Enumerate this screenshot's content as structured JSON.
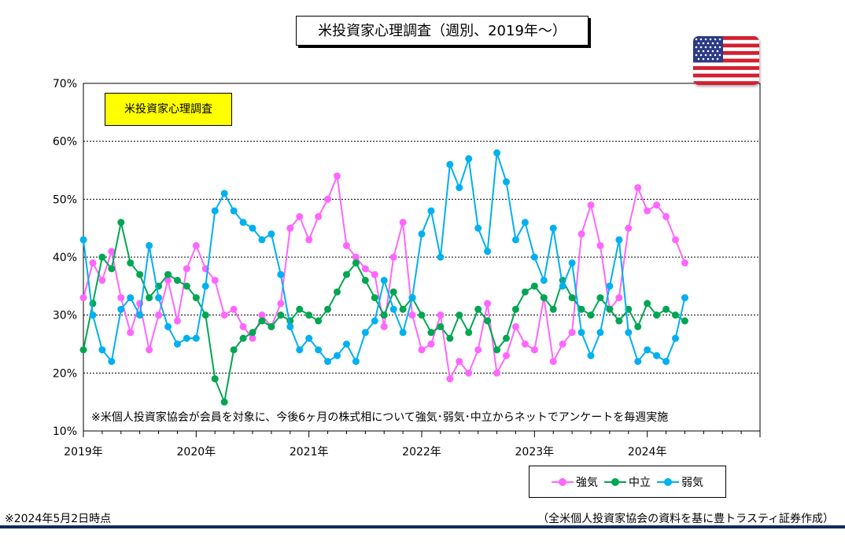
{
  "title": "米投資家心理調査（週別、2019年～）",
  "inner_label": "米投資家心理調査",
  "footnote": "※米個人投資家協会が会員を対象に、今後6ヶ月の株式相について強気･弱気･中立からネットでアンケートを毎週実施",
  "date_note": "※2024年5月2日時点",
  "source_note": "（全米個人投資家協会の資料を基に豊トラスティ証券作成）",
  "flag_icon": "us-flag-icon",
  "colors": {
    "bull": "#ff66ff",
    "neutral": "#00a651",
    "bear": "#00b0f0",
    "grid": "#000000",
    "rule": "#0e2c5c"
  },
  "chart_data": {
    "type": "line",
    "title": "米投資家心理調査（週別、2019年～）",
    "x_start": "2019-01",
    "x_end": "2025-01",
    "x_tick_labels": [
      "2019年",
      "2020年",
      "2021年",
      "2022年",
      "2023年",
      "2024年"
    ],
    "y_tick_labels": [
      "10%",
      "20%",
      "30%",
      "40%",
      "50%",
      "60%",
      "70%"
    ],
    "ylim": [
      10,
      70
    ],
    "y_ticks": [
      10,
      20,
      30,
      40,
      50,
      60,
      70
    ],
    "grid": "horizontal dotted",
    "legend_position": "bottom-right",
    "series": [
      {
        "name": "強気",
        "color": "#ff66ff",
        "points": [
          [
            "2019-01",
            33
          ],
          [
            "2019-02",
            39
          ],
          [
            "2019-03",
            36
          ],
          [
            "2019-04",
            41
          ],
          [
            "2019-05",
            33
          ],
          [
            "2019-06",
            27
          ],
          [
            "2019-07",
            32
          ],
          [
            "2019-08",
            24
          ],
          [
            "2019-09",
            30
          ],
          [
            "2019-10",
            36
          ],
          [
            "2019-11",
            29
          ],
          [
            "2019-12",
            38
          ],
          [
            "2020-01",
            42
          ],
          [
            "2020-02",
            38
          ],
          [
            "2020-03",
            36
          ],
          [
            "2020-04",
            30
          ],
          [
            "2020-05",
            31
          ],
          [
            "2020-06",
            28
          ],
          [
            "2020-07",
            26
          ],
          [
            "2020-08",
            30
          ],
          [
            "2020-09",
            28
          ],
          [
            "2020-10",
            32
          ],
          [
            "2020-11",
            45
          ],
          [
            "2020-12",
            47
          ],
          [
            "2021-01",
            43
          ],
          [
            "2021-02",
            47
          ],
          [
            "2021-03",
            50
          ],
          [
            "2021-04",
            54
          ],
          [
            "2021-05",
            42
          ],
          [
            "2021-06",
            40
          ],
          [
            "2021-07",
            38
          ],
          [
            "2021-08",
            37
          ],
          [
            "2021-09",
            28
          ],
          [
            "2021-10",
            40
          ],
          [
            "2021-11",
            46
          ],
          [
            "2021-12",
            30
          ],
          [
            "2022-01",
            24
          ],
          [
            "2022-02",
            25
          ],
          [
            "2022-03",
            30
          ],
          [
            "2022-04",
            19
          ],
          [
            "2022-05",
            22
          ],
          [
            "2022-06",
            20
          ],
          [
            "2022-07",
            24
          ],
          [
            "2022-08",
            32
          ],
          [
            "2022-09",
            20
          ],
          [
            "2022-10",
            23
          ],
          [
            "2022-11",
            28
          ],
          [
            "2022-12",
            25
          ],
          [
            "2023-01",
            24
          ],
          [
            "2023-02",
            33
          ],
          [
            "2023-03",
            22
          ],
          [
            "2023-04",
            25
          ],
          [
            "2023-05",
            27
          ],
          [
            "2023-06",
            44
          ],
          [
            "2023-07",
            49
          ],
          [
            "2023-08",
            42
          ],
          [
            "2023-09",
            31
          ],
          [
            "2023-10",
            33
          ],
          [
            "2023-11",
            45
          ],
          [
            "2023-12",
            52
          ],
          [
            "2024-01",
            48
          ],
          [
            "2024-02",
            49
          ],
          [
            "2024-03",
            47
          ],
          [
            "2024-04",
            43
          ],
          [
            "2024-05",
            39
          ]
        ]
      },
      {
        "name": "中立",
        "color": "#00a651",
        "points": [
          [
            "2019-01",
            24
          ],
          [
            "2019-02",
            32
          ],
          [
            "2019-03",
            40
          ],
          [
            "2019-04",
            38
          ],
          [
            "2019-05",
            46
          ],
          [
            "2019-06",
            39
          ],
          [
            "2019-07",
            37
          ],
          [
            "2019-08",
            33
          ],
          [
            "2019-09",
            35
          ],
          [
            "2019-10",
            37
          ],
          [
            "2019-11",
            36
          ],
          [
            "2019-12",
            35
          ],
          [
            "2020-01",
            33
          ],
          [
            "2020-02",
            30
          ],
          [
            "2020-03",
            19
          ],
          [
            "2020-04",
            15
          ],
          [
            "2020-05",
            24
          ],
          [
            "2020-06",
            26
          ],
          [
            "2020-07",
            27
          ],
          [
            "2020-08",
            29
          ],
          [
            "2020-09",
            28
          ],
          [
            "2020-10",
            30
          ],
          [
            "2020-11",
            29
          ],
          [
            "2020-12",
            31
          ],
          [
            "2021-01",
            30
          ],
          [
            "2021-02",
            29
          ],
          [
            "2021-03",
            31
          ],
          [
            "2021-04",
            34
          ],
          [
            "2021-05",
            37
          ],
          [
            "2021-06",
            39
          ],
          [
            "2021-07",
            36
          ],
          [
            "2021-08",
            33
          ],
          [
            "2021-09",
            30
          ],
          [
            "2021-10",
            34
          ],
          [
            "2021-11",
            31
          ],
          [
            "2021-12",
            33
          ],
          [
            "2022-01",
            30
          ],
          [
            "2022-02",
            27
          ],
          [
            "2022-03",
            28
          ],
          [
            "2022-04",
            26
          ],
          [
            "2022-05",
            30
          ],
          [
            "2022-06",
            27
          ],
          [
            "2022-07",
            31
          ],
          [
            "2022-08",
            29
          ],
          [
            "2022-09",
            24
          ],
          [
            "2022-10",
            26
          ],
          [
            "2022-11",
            31
          ],
          [
            "2022-12",
            34
          ],
          [
            "2023-01",
            35
          ],
          [
            "2023-02",
            33
          ],
          [
            "2023-03",
            31
          ],
          [
            "2023-04",
            36
          ],
          [
            "2023-05",
            33
          ],
          [
            "2023-06",
            31
          ],
          [
            "2023-07",
            30
          ],
          [
            "2023-08",
            33
          ],
          [
            "2023-09",
            31
          ],
          [
            "2023-10",
            29
          ],
          [
            "2023-11",
            31
          ],
          [
            "2023-12",
            28
          ],
          [
            "2024-01",
            32
          ],
          [
            "2024-02",
            30
          ],
          [
            "2024-03",
            31
          ],
          [
            "2024-04",
            30
          ],
          [
            "2024-05",
            29
          ]
        ]
      },
      {
        "name": "弱気",
        "color": "#00b0f0",
        "points": [
          [
            "2019-01",
            43
          ],
          [
            "2019-02",
            30
          ],
          [
            "2019-03",
            24
          ],
          [
            "2019-04",
            22
          ],
          [
            "2019-05",
            31
          ],
          [
            "2019-06",
            33
          ],
          [
            "2019-07",
            30
          ],
          [
            "2019-08",
            42
          ],
          [
            "2019-09",
            33
          ],
          [
            "2019-10",
            28
          ],
          [
            "2019-11",
            25
          ],
          [
            "2019-12",
            26
          ],
          [
            "2020-01",
            26
          ],
          [
            "2020-02",
            35
          ],
          [
            "2020-03",
            48
          ],
          [
            "2020-04",
            51
          ],
          [
            "2020-05",
            48
          ],
          [
            "2020-06",
            46
          ],
          [
            "2020-07",
            45
          ],
          [
            "2020-08",
            43
          ],
          [
            "2020-09",
            44
          ],
          [
            "2020-10",
            37
          ],
          [
            "2020-11",
            28
          ],
          [
            "2020-12",
            24
          ],
          [
            "2021-01",
            26
          ],
          [
            "2021-02",
            24
          ],
          [
            "2021-03",
            22
          ],
          [
            "2021-04",
            23
          ],
          [
            "2021-05",
            25
          ],
          [
            "2021-06",
            22
          ],
          [
            "2021-07",
            27
          ],
          [
            "2021-08",
            29
          ],
          [
            "2021-09",
            36
          ],
          [
            "2021-10",
            31
          ],
          [
            "2021-11",
            27
          ],
          [
            "2021-12",
            33
          ],
          [
            "2022-01",
            44
          ],
          [
            "2022-02",
            48
          ],
          [
            "2022-03",
            40
          ],
          [
            "2022-04",
            56
          ],
          [
            "2022-05",
            52
          ],
          [
            "2022-06",
            57
          ],
          [
            "2022-07",
            45
          ],
          [
            "2022-08",
            41
          ],
          [
            "2022-09",
            58
          ],
          [
            "2022-10",
            53
          ],
          [
            "2022-11",
            43
          ],
          [
            "2022-12",
            46
          ],
          [
            "2023-01",
            40
          ],
          [
            "2023-02",
            36
          ],
          [
            "2023-03",
            45
          ],
          [
            "2023-04",
            35
          ],
          [
            "2023-05",
            39
          ],
          [
            "2023-06",
            27
          ],
          [
            "2023-07",
            23
          ],
          [
            "2023-08",
            27
          ],
          [
            "2023-09",
            35
          ],
          [
            "2023-10",
            43
          ],
          [
            "2023-11",
            27
          ],
          [
            "2023-12",
            22
          ],
          [
            "2024-01",
            24
          ],
          [
            "2024-02",
            23
          ],
          [
            "2024-03",
            22
          ],
          [
            "2024-04",
            26
          ],
          [
            "2024-05",
            33
          ]
        ]
      }
    ]
  }
}
